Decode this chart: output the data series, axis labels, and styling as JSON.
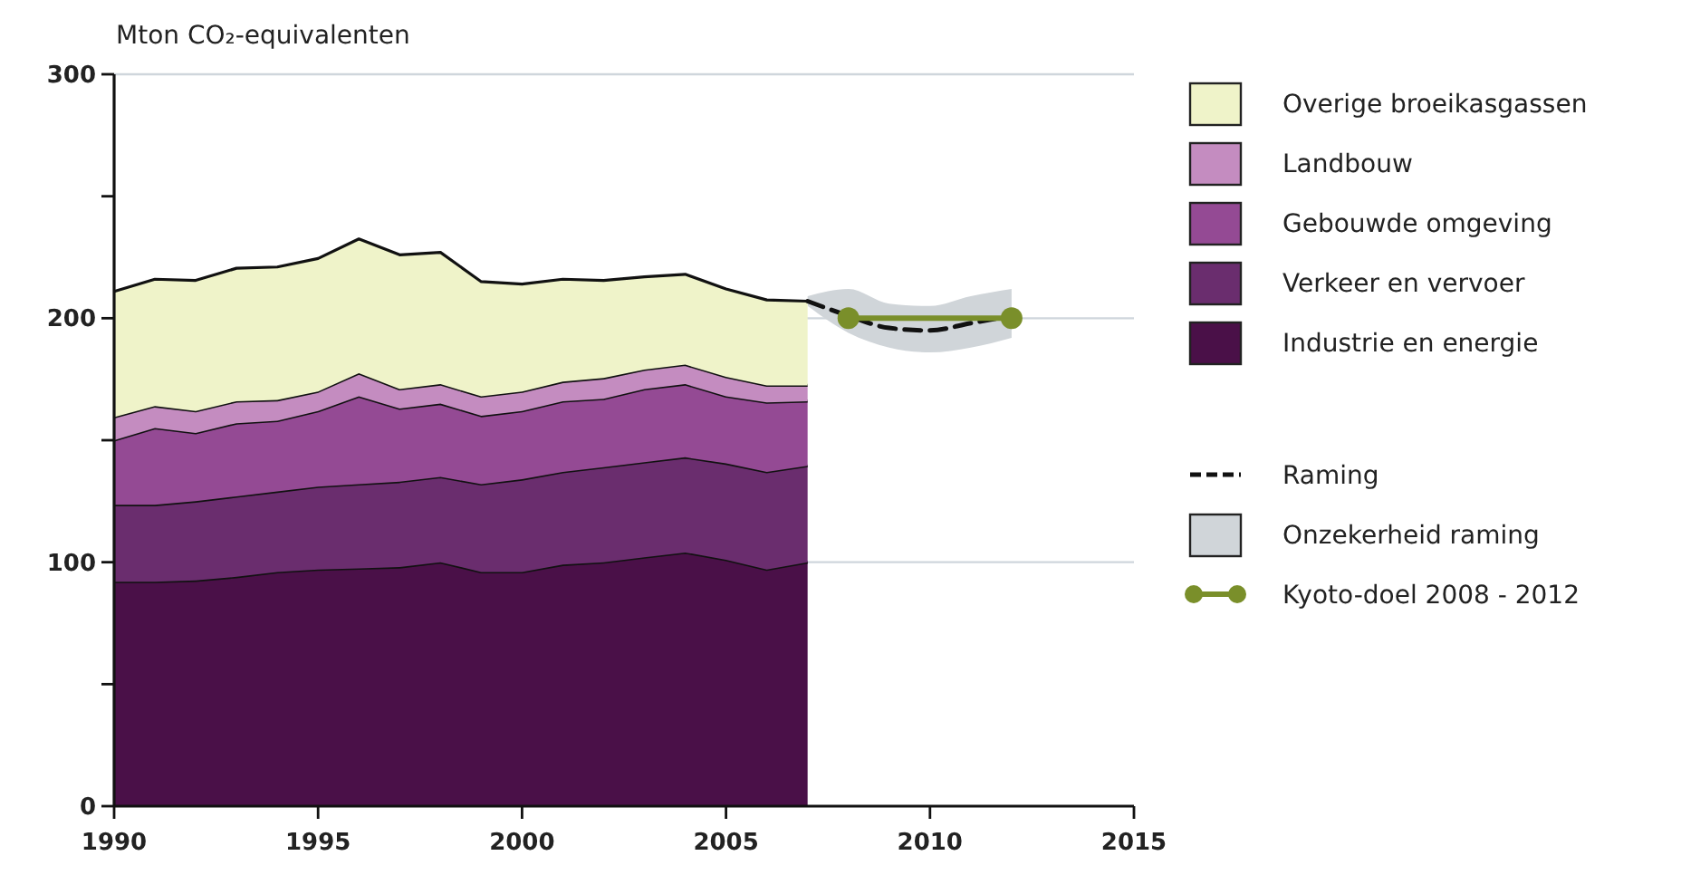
{
  "chart_data": {
    "type": "area",
    "stacked": true,
    "ylabel": "Mton CO₂-equivalenten",
    "x": [
      1990,
      1991,
      1992,
      1993,
      1994,
      1995,
      1996,
      1997,
      1998,
      1999,
      2000,
      2001,
      2002,
      2003,
      2004,
      2005,
      2006,
      2007
    ],
    "xlim": [
      1990,
      2015
    ],
    "xticks": [
      1990,
      1995,
      2000,
      2005,
      2010,
      2015
    ],
    "ylim": [
      0,
      300
    ],
    "yticks": [
      0,
      {
        "value": 50,
        "label": null
      },
      100,
      {
        "value": 150,
        "label": null
      },
      200,
      {
        "value": 250,
        "label": null
      },
      300
    ],
    "ref_lines": [
      {
        "axis": "y",
        "value": 100,
        "color": "#cfd6dc"
      },
      {
        "axis": "y",
        "value": 200,
        "color": "#cfd6dc"
      },
      {
        "axis": "y",
        "value": 300,
        "color": "#cfd6dc"
      }
    ],
    "legend": "right",
    "series": [
      {
        "name": "Industrie en energie",
        "color": "#4a1048",
        "values": [
          92,
          92,
          92.5,
          94,
          96,
          97,
          97.5,
          98,
          100,
          96,
          96,
          99,
          100,
          102,
          104,
          101,
          97,
          100
        ]
      },
      {
        "name": "Verkeer en vervoer",
        "color": "#6a2d6e",
        "values": [
          31.5,
          31.5,
          32.5,
          33,
          33,
          34,
          34.5,
          35,
          35,
          36,
          38,
          38,
          39,
          39,
          39,
          39.5,
          40,
          39.5
        ]
      },
      {
        "name": "Gebouwde omgeving",
        "color": "#944a94",
        "values": [
          26.5,
          31.5,
          28,
          30,
          29,
          31,
          36,
          30,
          30,
          28,
          28,
          29,
          28,
          30,
          30,
          27.5,
          28.5,
          26.5
        ]
      },
      {
        "name": "Landbouw",
        "color": "#c48cc0",
        "values": [
          9.5,
          9,
          9,
          9,
          8.5,
          8,
          9.5,
          8,
          8,
          8,
          8,
          8,
          8.5,
          8,
          8,
          8,
          7,
          6.5
        ]
      },
      {
        "name": "Overige broeikasgassen",
        "color": "#eff3c9",
        "values": [
          51.5,
          52,
          53.5,
          54.5,
          54.5,
          54.5,
          55,
          55,
          54,
          47,
          44,
          42,
          40,
          38,
          37,
          36,
          35,
          34.5
        ]
      },
      {
        "name": "Raming",
        "type": "line",
        "line_style": "dashed",
        "color": "#111111",
        "x": [
          2007,
          2008,
          2009,
          2010,
          2011,
          2012
        ],
        "values": [
          207,
          201,
          196,
          195,
          198,
          201
        ]
      },
      {
        "name": "Onzekerheid raming",
        "type": "area",
        "color": "#d0d5d9",
        "x": [
          2007,
          2008,
          2009,
          2010,
          2011,
          2012
        ],
        "values": [
          null,
          null,
          null,
          null,
          null,
          null
        ],
        "lower": [
          205,
          194,
          188,
          186,
          188,
          192
        ],
        "upper": [
          209,
          212,
          206,
          205,
          209,
          212
        ]
      },
      {
        "name": "Kyoto-doel 2008 - 2012",
        "type": "line",
        "marker": "circle",
        "color": "#7a8f2a",
        "x": [
          2008,
          2012
        ],
        "values": [
          200,
          200
        ]
      }
    ]
  }
}
